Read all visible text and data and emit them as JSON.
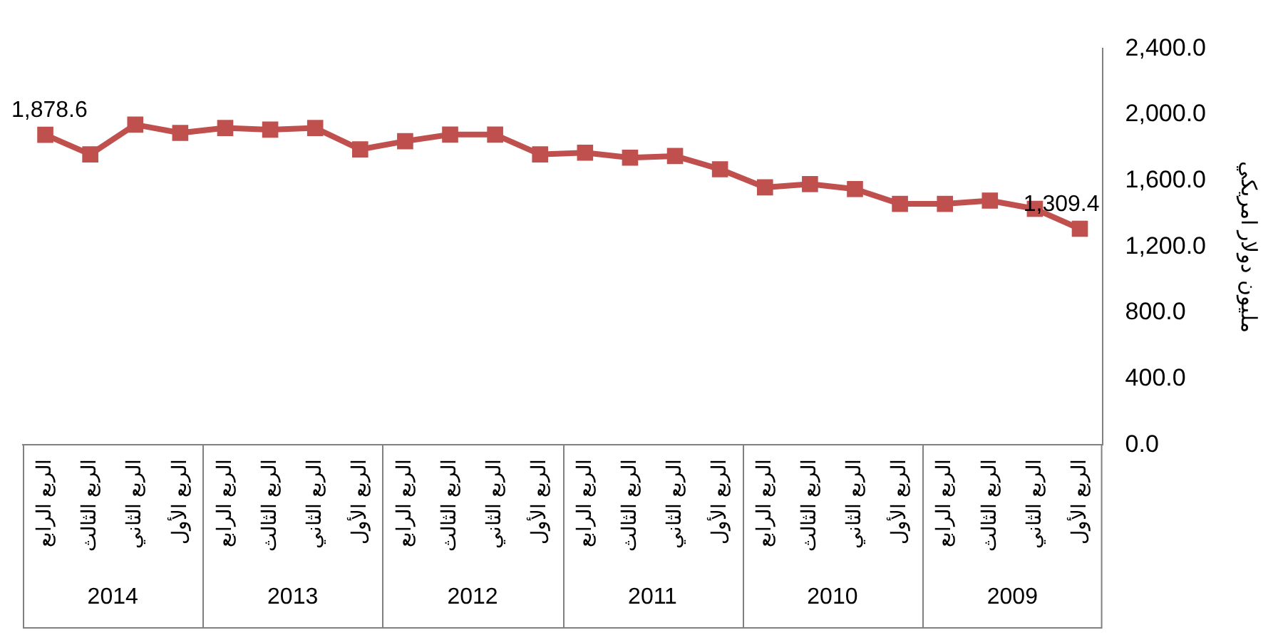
{
  "chart_data": {
    "type": "line",
    "ylabel": "مليون دولار امريكي",
    "categories": [
      "الربع الرابع",
      "الربع الثالث",
      "الربع الثاني",
      "الربع الأول",
      "الربع الرابع",
      "الربع الثالث",
      "الربع الثاني",
      "الربع الأول",
      "الربع الرابع",
      "الربع الثالث",
      "الربع الثاني",
      "الربع الأول",
      "الربع الرابع",
      "الربع الثالث",
      "الربع الثاني",
      "الربع الأول",
      "الربع الرابع",
      "الربع الثالث",
      "الربع الثاني",
      "الربع الأول",
      "الربع الرابع",
      "الربع الثالث",
      "الربع الثاني",
      "الربع الأول"
    ],
    "series": [
      {
        "color": "#c0504d",
        "values": [
          1878.6,
          1760,
          1940,
          1890,
          1920,
          1910,
          1920,
          1790,
          1840,
          1880,
          1880,
          1760,
          1770,
          1740,
          1750,
          1670,
          1560,
          1580,
          1550,
          1460,
          1460,
          1480,
          1430,
          1309.4
        ],
        "value_labels": [
          "1,878.6",
          null,
          null,
          null,
          null,
          null,
          null,
          null,
          null,
          null,
          null,
          null,
          null,
          null,
          null,
          null,
          null,
          null,
          null,
          null,
          null,
          null,
          null,
          "1,309.4"
        ]
      }
    ],
    "annotations": [
      "2014",
      "2013",
      "2012",
      "2011",
      "2010",
      "2009"
    ],
    "ylim": [
      0,
      2400
    ],
    "yticks": [
      {
        "value": 0,
        "label": "0.0"
      },
      {
        "value": 400,
        "label": "400.0"
      },
      {
        "value": 800,
        "label": "800.0"
      },
      {
        "value": 1200,
        "label": "1,200.0"
      },
      {
        "value": 1600,
        "label": "1,600.0"
      },
      {
        "value": 2000,
        "label": "2,000.0"
      },
      {
        "value": 2400,
        "label": "2,400.0"
      }
    ],
    "grid": false,
    "legend": false,
    "marker": "square",
    "line_style": "solid"
  }
}
